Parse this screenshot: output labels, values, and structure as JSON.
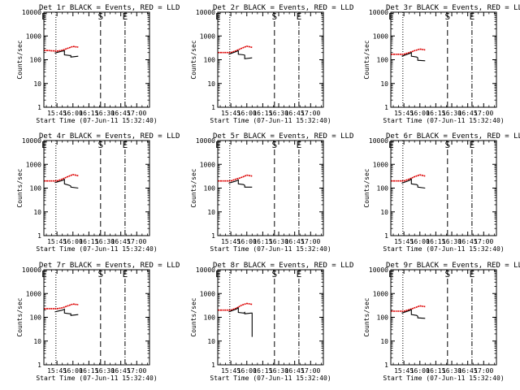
{
  "figure": {
    "panel_title_suffix": "BLACK = Events, RED = LLD",
    "y_axis_label": "Counts/sec",
    "x_axis_label": "Start Time (07-Jun-11 15:32:40)",
    "x_tick_labels": [
      "15:45",
      "16:00",
      "16:15",
      "16:30",
      "16:45",
      "17:00"
    ],
    "y_tick_labels": [
      "1",
      "10",
      "100",
      "1000",
      "10000"
    ]
  },
  "chart_data": [
    {
      "type": "line",
      "title": "Det 1r",
      "xlabel": "Start Time (07-Jun-11 15:32:40)",
      "ylabel": "Counts/sec",
      "xlim": [
        "15:32:40",
        "17:12:00"
      ],
      "ylim": [
        1,
        10000
      ],
      "y_scale": "log",
      "markers": [
        {
          "label": "E",
          "time": "15:33"
        },
        {
          "label": "S",
          "time": "16:26"
        },
        {
          "label": "E",
          "time": "16:49"
        }
      ],
      "dotted_lines": [
        "15:44"
      ],
      "dashed_lines": [
        "16:26"
      ],
      "dashdot_lines": [
        "16:49"
      ],
      "series": [
        {
          "color": "#dd0000",
          "x": [
            "15:33",
            "15:45",
            "15:50",
            "15:55",
            "16:00",
            "16:05"
          ],
          "values": [
            250,
            230,
            250,
            300,
            360,
            340
          ]
        },
        {
          "color": "#000000",
          "x": [
            "15:43",
            "15:50",
            "15:52",
            "15:52",
            "15:57",
            "15:58",
            "15:58",
            "16:05"
          ],
          "values": [
            190,
            230,
            240,
            160,
            150,
            150,
            130,
            140
          ]
        }
      ]
    },
    {
      "type": "line",
      "title": "Det 2r",
      "xlabel": "Start Time (07-Jun-11 15:32:40)",
      "ylabel": "Counts/sec",
      "xlim": [
        "15:32:40",
        "17:12:00"
      ],
      "ylim": [
        1,
        10000
      ],
      "y_scale": "log",
      "markers": [
        {
          "label": "E",
          "time": "15:33"
        },
        {
          "label": "S",
          "time": "16:26"
        },
        {
          "label": "E",
          "time": "16:49"
        }
      ],
      "dotted_lines": [
        "15:44"
      ],
      "dashed_lines": [
        "16:26"
      ],
      "dashdot_lines": [
        "16:49"
      ],
      "series": [
        {
          "color": "#dd0000",
          "x": [
            "15:33",
            "15:45",
            "15:50",
            "15:55",
            "16:00",
            "16:05"
          ],
          "values": [
            200,
            200,
            240,
            300,
            370,
            330
          ]
        },
        {
          "color": "#000000",
          "x": [
            "15:43",
            "15:50",
            "15:52",
            "15:52",
            "15:57",
            "15:58",
            "15:58",
            "16:05"
          ],
          "values": [
            170,
            220,
            240,
            170,
            160,
            155,
            110,
            120
          ]
        }
      ]
    },
    {
      "type": "line",
      "title": "Det 3r",
      "xlabel": "Start Time (07-Jun-11 15:32:40)",
      "ylabel": "Counts/sec",
      "xlim": [
        "15:32:40",
        "17:12:00"
      ],
      "ylim": [
        1,
        10000
      ],
      "y_scale": "log",
      "markers": [
        {
          "label": "E",
          "time": "15:33"
        },
        {
          "label": "S",
          "time": "16:26"
        },
        {
          "label": "E",
          "time": "16:49"
        }
      ],
      "dotted_lines": [
        "15:44"
      ],
      "dashed_lines": [
        "16:26"
      ],
      "dashdot_lines": [
        "16:49"
      ],
      "series": [
        {
          "color": "#dd0000",
          "x": [
            "15:33",
            "15:45",
            "15:50",
            "15:55",
            "16:00",
            "16:05"
          ],
          "values": [
            170,
            170,
            200,
            240,
            280,
            260
          ]
        },
        {
          "color": "#000000",
          "x": [
            "15:43",
            "15:50",
            "15:52",
            "15:52",
            "15:57",
            "15:58",
            "15:58",
            "16:05"
          ],
          "values": [
            140,
            180,
            200,
            140,
            130,
            120,
            95,
            90
          ]
        }
      ]
    },
    {
      "type": "line",
      "title": "Det 4r",
      "xlabel": "Start Time (07-Jun-11 15:32:40)",
      "ylabel": "Counts/sec",
      "xlim": [
        "15:32:40",
        "17:12:00"
      ],
      "ylim": [
        1,
        10000
      ],
      "y_scale": "log",
      "markers": [
        {
          "label": "E",
          "time": "15:33"
        },
        {
          "label": "S",
          "time": "16:26"
        },
        {
          "label": "E",
          "time": "16:49"
        }
      ],
      "dotted_lines": [
        "15:44"
      ],
      "dashed_lines": [
        "16:26"
      ],
      "dashdot_lines": [
        "16:49"
      ],
      "series": [
        {
          "color": "#dd0000",
          "x": [
            "15:33",
            "15:45",
            "15:50",
            "15:55",
            "16:00",
            "16:05"
          ],
          "values": [
            200,
            200,
            240,
            300,
            370,
            330
          ]
        },
        {
          "color": "#000000",
          "x": [
            "15:43",
            "15:50",
            "15:52",
            "15:52",
            "15:57",
            "15:58",
            "15:58",
            "16:05"
          ],
          "values": [
            170,
            210,
            230,
            150,
            130,
            120,
            110,
            100
          ]
        }
      ]
    },
    {
      "type": "line",
      "title": "Det 5r",
      "xlabel": "Start Time (07-Jun-11 15:32:40)",
      "ylabel": "Counts/sec",
      "xlim": [
        "15:32:40",
        "17:12:00"
      ],
      "ylim": [
        1,
        10000
      ],
      "y_scale": "log",
      "markers": [
        {
          "label": "E",
          "time": "15:33"
        },
        {
          "label": "S",
          "time": "16:26"
        },
        {
          "label": "E",
          "time": "16:49"
        }
      ],
      "dotted_lines": [
        "15:44"
      ],
      "dashed_lines": [
        "16:26"
      ],
      "dashdot_lines": [
        "16:49"
      ],
      "series": [
        {
          "color": "#dd0000",
          "x": [
            "15:33",
            "15:45",
            "15:50",
            "15:55",
            "16:00",
            "16:05"
          ],
          "values": [
            200,
            200,
            240,
            280,
            350,
            320
          ]
        },
        {
          "color": "#000000",
          "x": [
            "15:43",
            "15:50",
            "15:52",
            "15:52",
            "15:57",
            "15:58",
            "15:58",
            "16:05"
          ],
          "values": [
            160,
            200,
            220,
            150,
            140,
            130,
            110,
            110
          ]
        }
      ]
    },
    {
      "type": "line",
      "title": "Det 6r",
      "xlabel": "Start Time (07-Jun-11 15:32:40)",
      "ylabel": "Counts/sec",
      "xlim": [
        "15:32:40",
        "17:12:00"
      ],
      "ylim": [
        1,
        10000
      ],
      "y_scale": "log",
      "markers": [
        {
          "label": "E",
          "time": "15:33"
        },
        {
          "label": "S",
          "time": "16:26"
        },
        {
          "label": "E",
          "time": "16:49"
        }
      ],
      "dotted_lines": [
        "15:44"
      ],
      "dashed_lines": [
        "16:26"
      ],
      "dashdot_lines": [
        "16:49"
      ],
      "series": [
        {
          "color": "#dd0000",
          "x": [
            "15:33",
            "15:45",
            "15:50",
            "15:55",
            "16:00",
            "16:05"
          ],
          "values": [
            200,
            200,
            240,
            300,
            360,
            320
          ]
        },
        {
          "color": "#000000",
          "x": [
            "15:43",
            "15:50",
            "15:52",
            "15:52",
            "15:57",
            "15:58",
            "15:58",
            "16:05"
          ],
          "values": [
            160,
            210,
            240,
            150,
            140,
            130,
            110,
            100
          ]
        }
      ]
    },
    {
      "type": "line",
      "title": "Det 7r",
      "xlabel": "Start Time (07-Jun-11 15:32:40)",
      "ylabel": "Counts/sec",
      "xlim": [
        "15:32:40",
        "17:12:00"
      ],
      "ylim": [
        1,
        10000
      ],
      "y_scale": "log",
      "markers": [
        {
          "label": "E",
          "time": "15:33"
        },
        {
          "label": "S",
          "time": "16:26"
        },
        {
          "label": "E",
          "time": "16:49"
        }
      ],
      "dotted_lines": [
        "15:44"
      ],
      "dashed_lines": [
        "16:26"
      ],
      "dashdot_lines": [
        "16:49"
      ],
      "series": [
        {
          "color": "#dd0000",
          "x": [
            "15:33",
            "15:45",
            "15:50",
            "15:55",
            "16:00",
            "16:05"
          ],
          "values": [
            230,
            230,
            250,
            300,
            360,
            340
          ]
        },
        {
          "color": "#000000",
          "x": [
            "15:43",
            "15:50",
            "15:52",
            "15:52",
            "15:57",
            "15:58",
            "15:58",
            "16:05"
          ],
          "values": [
            170,
            200,
            220,
            150,
            140,
            140,
            120,
            130
          ]
        }
      ]
    },
    {
      "type": "line",
      "title": "Det 8r",
      "xlabel": "Start Time (07-Jun-11 15:32:40)",
      "ylabel": "Counts/sec",
      "xlim": [
        "15:32:40",
        "17:12:00"
      ],
      "ylim": [
        1,
        10000
      ],
      "y_scale": "log",
      "markers": [
        {
          "label": "E",
          "time": "15:33"
        },
        {
          "label": "S",
          "time": "16:26"
        },
        {
          "label": "E",
          "time": "16:49"
        }
      ],
      "dotted_lines": [
        "15:44"
      ],
      "dashed_lines": [
        "16:26"
      ],
      "dashdot_lines": [
        "16:49"
      ],
      "series": [
        {
          "color": "#dd0000",
          "x": [
            "15:33",
            "15:45",
            "15:50",
            "15:55",
            "16:00",
            "16:05"
          ],
          "values": [
            200,
            200,
            240,
            320,
            380,
            350
          ]
        },
        {
          "color": "#000000",
          "x": [
            "15:43",
            "15:50",
            "15:52",
            "15:52",
            "15:57",
            "15:58",
            "15:58",
            "16:04",
            "16:05",
            "16:05"
          ],
          "values": [
            170,
            220,
            250,
            160,
            150,
            160,
            140,
            150,
            150,
            15
          ]
        }
      ]
    },
    {
      "type": "line",
      "title": "Det 9r",
      "xlabel": "Start Time (07-Jun-11 15:32:40)",
      "ylabel": "Counts/sec",
      "xlim": [
        "15:32:40",
        "17:12:00"
      ],
      "ylim": [
        1,
        10000
      ],
      "y_scale": "log",
      "markers": [
        {
          "label": "E",
          "time": "15:33"
        },
        {
          "label": "S",
          "time": "16:26"
        },
        {
          "label": "E",
          "time": "16:49"
        }
      ],
      "dotted_lines": [
        "15:44"
      ],
      "dashed_lines": [
        "16:26"
      ],
      "dashdot_lines": [
        "16:49"
      ],
      "series": [
        {
          "color": "#dd0000",
          "x": [
            "15:33",
            "15:45",
            "15:50",
            "15:55",
            "16:00",
            "16:05"
          ],
          "values": [
            180,
            180,
            210,
            250,
            300,
            280
          ]
        },
        {
          "color": "#000000",
          "x": [
            "15:43",
            "15:50",
            "15:52",
            "15:52",
            "15:57",
            "15:58",
            "15:58",
            "16:05"
          ],
          "values": [
            150,
            190,
            210,
            130,
            120,
            110,
            95,
            90
          ]
        }
      ]
    }
  ]
}
